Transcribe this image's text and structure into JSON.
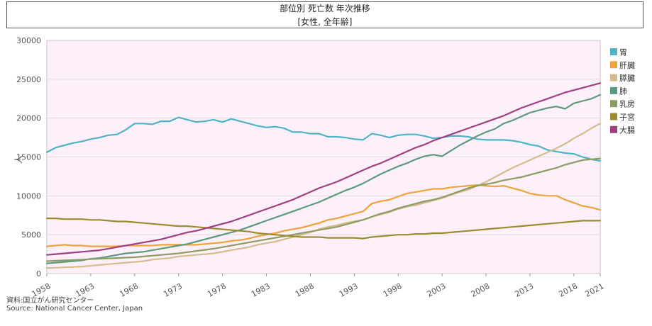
{
  "header": {
    "title": "部位別 死亡数 年次推移",
    "subtitle": "[女性, 全年齢]"
  },
  "source": {
    "line1": "資料:国立がん研究センター",
    "line2": "Source: National Cancer Center, Japan"
  },
  "chart_data": {
    "type": "line",
    "title": "部位別 死亡数 年次推移",
    "subtitle": "[女性, 全年齢]",
    "xlabel": "",
    "ylabel": "人",
    "xlim": [
      1958,
      2021
    ],
    "ylim": [
      0,
      30000
    ],
    "y_ticks": [
      0,
      5000,
      10000,
      15000,
      20000,
      25000,
      30000
    ],
    "x_ticks": [
      1958,
      1963,
      1968,
      1973,
      1978,
      1983,
      1988,
      1993,
      1998,
      2003,
      2008,
      2013,
      2018,
      2021
    ],
    "grid": true,
    "legend_position": "right",
    "x": [
      1958,
      1959,
      1960,
      1961,
      1962,
      1963,
      1964,
      1965,
      1966,
      1967,
      1968,
      1969,
      1970,
      1971,
      1972,
      1973,
      1974,
      1975,
      1976,
      1977,
      1978,
      1979,
      1980,
      1981,
      1982,
      1983,
      1984,
      1985,
      1986,
      1987,
      1988,
      1989,
      1990,
      1991,
      1992,
      1993,
      1994,
      1995,
      1996,
      1997,
      1998,
      1999,
      2000,
      2001,
      2002,
      2003,
      2004,
      2005,
      2006,
      2007,
      2008,
      2009,
      2010,
      2011,
      2012,
      2013,
      2014,
      2015,
      2016,
      2017,
      2018,
      2019,
      2020,
      2021
    ],
    "series": [
      {
        "name": "胃",
        "color": "#4eb3c8",
        "values": [
          15600,
          16200,
          16500,
          16800,
          17000,
          17300,
          17500,
          17800,
          17900,
          18500,
          19300,
          19300,
          19200,
          19600,
          19600,
          20100,
          19800,
          19500,
          19600,
          19800,
          19500,
          19900,
          19600,
          19300,
          19000,
          18800,
          18900,
          18700,
          18200,
          18200,
          18000,
          18000,
          17600,
          17600,
          17500,
          17300,
          17200,
          18000,
          17800,
          17500,
          17800,
          17900,
          17900,
          17700,
          17400,
          17500,
          17700,
          17700,
          17600,
          17300,
          17200,
          17200,
          17200,
          17100,
          16900,
          16600,
          16400,
          15900,
          15700,
          15500,
          15400,
          15000,
          14700,
          14500
        ]
      },
      {
        "name": "肝臓",
        "color": "#eea33b",
        "values": [
          3500,
          3600,
          3700,
          3600,
          3600,
          3500,
          3500,
          3500,
          3500,
          3600,
          3600,
          3600,
          3600,
          3700,
          3700,
          3700,
          3700,
          3700,
          3800,
          3900,
          4000,
          4200,
          4300,
          4500,
          4800,
          5000,
          5200,
          5500,
          5700,
          5900,
          6200,
          6500,
          6900,
          7100,
          7400,
          7700,
          8000,
          9000,
          9300,
          9500,
          9900,
          10300,
          10500,
          10700,
          10900,
          10900,
          11100,
          11200,
          11300,
          11400,
          11300,
          11200,
          11300,
          11000,
          10700,
          10300,
          10100,
          10000,
          10000,
          9500,
          9100,
          8700,
          8500,
          8200
        ]
      },
      {
        "name": "膵臓",
        "color": "#d6bb8b",
        "values": [
          700,
          750,
          800,
          850,
          900,
          1000,
          1100,
          1200,
          1300,
          1400,
          1500,
          1600,
          1800,
          1900,
          2000,
          2200,
          2300,
          2400,
          2500,
          2600,
          2800,
          3000,
          3200,
          3400,
          3700,
          3900,
          4100,
          4400,
          4700,
          5000,
          5300,
          5700,
          6000,
          6200,
          6500,
          6700,
          6900,
          7300,
          7600,
          7900,
          8300,
          8600,
          8800,
          9100,
          9400,
          9700,
          10100,
          10500,
          10800,
          11300,
          11800,
          12400,
          13000,
          13600,
          14100,
          14600,
          15100,
          15600,
          16100,
          16700,
          17400,
          18000,
          18700,
          19300
        ]
      },
      {
        "name": "肺",
        "color": "#5b9a7c",
        "values": [
          1300,
          1400,
          1500,
          1600,
          1700,
          1900,
          2000,
          2200,
          2400,
          2600,
          2700,
          2800,
          3000,
          3200,
          3400,
          3600,
          3800,
          4100,
          4400,
          4700,
          5000,
          5300,
          5600,
          6000,
          6400,
          6800,
          7200,
          7600,
          8000,
          8400,
          8800,
          9200,
          9700,
          10200,
          10700,
          11100,
          11600,
          12200,
          12800,
          13300,
          13800,
          14200,
          14700,
          15100,
          15300,
          15100,
          15800,
          16500,
          17100,
          17700,
          18200,
          18600,
          19300,
          19700,
          20200,
          20700,
          21000,
          21300,
          21500,
          21200,
          21900,
          22200,
          22500,
          23000
        ]
      },
      {
        "name": "乳房",
        "color": "#8c9d62",
        "values": [
          1600,
          1650,
          1700,
          1750,
          1800,
          1850,
          1900,
          1950,
          2000,
          2050,
          2100,
          2200,
          2300,
          2400,
          2500,
          2600,
          2750,
          2900,
          3050,
          3200,
          3400,
          3600,
          3800,
          4000,
          4200,
          4400,
          4600,
          4800,
          5000,
          5200,
          5400,
          5600,
          5800,
          6000,
          6300,
          6600,
          6900,
          7300,
          7700,
          8000,
          8400,
          8700,
          9000,
          9300,
          9500,
          9800,
          10200,
          10600,
          11000,
          11300,
          11500,
          11700,
          12000,
          12200,
          12400,
          12700,
          13000,
          13300,
          13600,
          14000,
          14300,
          14600,
          14700,
          14800
        ]
      },
      {
        "name": "子宮",
        "color": "#9b8c2e",
        "values": [
          7100,
          7100,
          7000,
          7000,
          7000,
          6900,
          6900,
          6800,
          6700,
          6700,
          6600,
          6500,
          6400,
          6300,
          6200,
          6100,
          6100,
          6000,
          5900,
          5800,
          5700,
          5600,
          5500,
          5400,
          5200,
          5100,
          5000,
          4900,
          4800,
          4700,
          4700,
          4700,
          4600,
          4600,
          4600,
          4600,
          4500,
          4700,
          4800,
          4900,
          5000,
          5000,
          5100,
          5100,
          5200,
          5200,
          5300,
          5400,
          5500,
          5600,
          5700,
          5800,
          5900,
          6000,
          6100,
          6200,
          6300,
          6400,
          6500,
          6600,
          6700,
          6800,
          6800,
          6800
        ]
      },
      {
        "name": "大腸",
        "color": "#a0407e",
        "values": [
          2400,
          2500,
          2600,
          2700,
          2800,
          2900,
          3000,
          3200,
          3400,
          3600,
          3800,
          4000,
          4200,
          4400,
          4700,
          5000,
          5300,
          5500,
          5800,
          6100,
          6400,
          6700,
          7100,
          7500,
          7900,
          8300,
          8700,
          9100,
          9500,
          10000,
          10500,
          11000,
          11400,
          11800,
          12300,
          12800,
          13300,
          13800,
          14200,
          14700,
          15200,
          15700,
          16200,
          16600,
          17100,
          17500,
          17900,
          18300,
          18700,
          19100,
          19500,
          19900,
          20300,
          20800,
          21300,
          21700,
          22100,
          22500,
          22900,
          23300,
          23600,
          23900,
          24200,
          24500
        ]
      }
    ]
  }
}
